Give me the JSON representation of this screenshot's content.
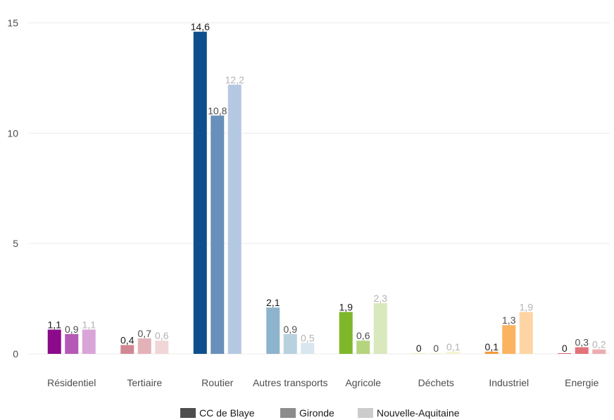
{
  "chart_data": {
    "type": "bar",
    "categories": [
      "Résidentiel",
      "Tertiaire",
      "Routier",
      "Autres transports",
      "Agricole",
      "Déchets",
      "Industriel",
      "Energie"
    ],
    "series": [
      {
        "name": "CC de Blaye",
        "values": [
          1.1,
          0.4,
          14.6,
          2.1,
          1.9,
          0,
          0.1,
          0
        ],
        "labels": [
          "1,1",
          "0,4",
          "14,6",
          "2,1",
          "1,9",
          "0",
          "0,1",
          "0"
        ]
      },
      {
        "name": "Gironde",
        "values": [
          0.9,
          0.7,
          10.8,
          0.9,
          0.6,
          0,
          1.3,
          0.3
        ],
        "labels": [
          "0,9",
          "0,7",
          "10,8",
          "0,9",
          "0,6",
          "0",
          "1,3",
          "0,3"
        ]
      },
      {
        "name": "Nouvelle-Aquitaine",
        "values": [
          1.1,
          0.6,
          12.2,
          0.5,
          2.3,
          0.1,
          1.9,
          0.2
        ],
        "labels": [
          "1,1",
          "0,6",
          "12,2",
          "0,5",
          "2,3",
          "0,1",
          "1,9",
          "0,2"
        ]
      }
    ],
    "category_colors": [
      [
        "#8b0a8b",
        "#b659b6",
        "#d9a5d9"
      ],
      [
        "#d08893",
        "#e3b2b8",
        "#f1d6d8"
      ],
      [
        "#0d4f8c",
        "#6890bb",
        "#b5c8e2"
      ],
      [
        "#8db4cc",
        "#b8d1df",
        "#d9e6ef"
      ],
      [
        "#7fb72b",
        "#b5d47e",
        "#d9e8bd"
      ],
      [
        "#ece9a5",
        "#f1eebd",
        "#f6f3d2"
      ],
      [
        "#f29a3a",
        "#fbb35f",
        "#fdd5a4"
      ],
      [
        "#d4434a",
        "#e2737a",
        "#eeacb0"
      ]
    ],
    "label_colors": [
      "#1a1a1a",
      "#4d4d4d",
      "#b3b3b3"
    ],
    "legend_colors": [
      "#4d4d4d",
      "#8c8c8c",
      "#cccccc"
    ],
    "yticks": [
      0,
      5,
      10,
      15
    ],
    "ylim": [
      0,
      15.4
    ],
    "grid": true,
    "legend_position": "bottom"
  }
}
